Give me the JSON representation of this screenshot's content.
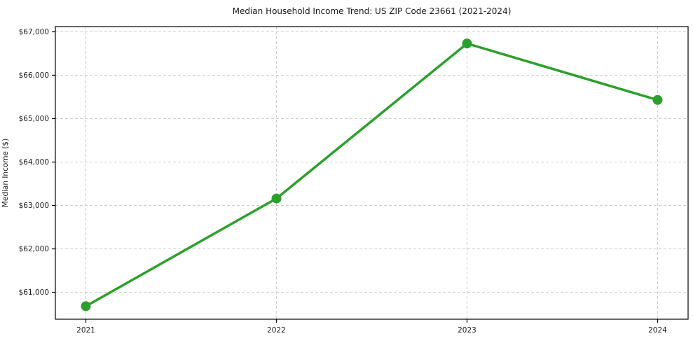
{
  "chart_data": {
    "type": "line",
    "title": "Median Household Income Trend: US ZIP Code 23661 (2021-2024)",
    "xlabel": "",
    "ylabel": "Median Income ($)",
    "x": [
      2021,
      2022,
      2023,
      2024
    ],
    "series": [
      {
        "name": "Median Household Income",
        "values": [
          60680,
          63160,
          66730,
          65430
        ],
        "color": "#2ca02c",
        "marker": "circle",
        "marker_radius": 7,
        "line_width": 3.5
      }
    ],
    "xtick_labels": [
      "2021",
      "2022",
      "2023",
      "2024"
    ],
    "ytick_values": [
      61000,
      62000,
      63000,
      64000,
      65000,
      66000,
      67000
    ],
    "ytick_labels": [
      "$61,000",
      "$62,000",
      "$63,000",
      "$64,000",
      "$65,000",
      "$66,000",
      "$67,000"
    ],
    "xlim": [
      2020.84,
      2024.16
    ],
    "ylim": [
      60380,
      67120
    ],
    "grid": "dashed",
    "grid_color": "#cccccc",
    "spine_color": "#000000",
    "legend": "none",
    "background": "#ffffff"
  }
}
